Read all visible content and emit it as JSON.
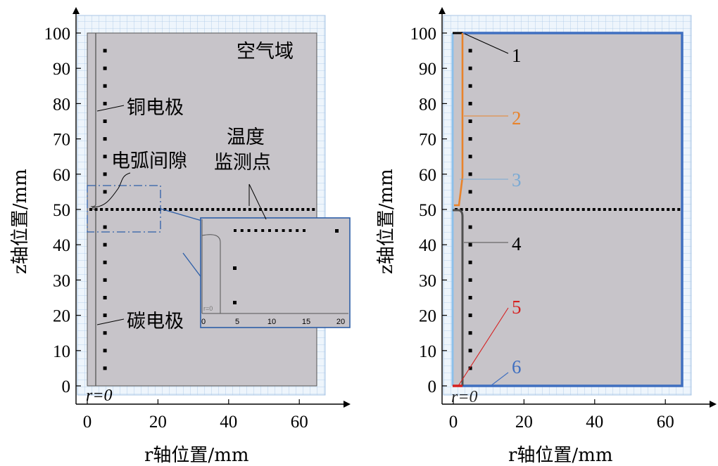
{
  "left_panel": {
    "x_axis_label": "r轴位置/mm",
    "y_axis_label": "z轴位置/mm",
    "x_ticks": [
      "0",
      "20",
      "40",
      "60"
    ],
    "y_ticks": [
      "0",
      "10",
      "20",
      "30",
      "40",
      "50",
      "60",
      "70",
      "80",
      "90",
      "100"
    ],
    "annotations": {
      "air_domain": "空气域",
      "copper_electrode": "铜电极",
      "arc_gap": "电弧间隙",
      "temp_monitor_line1": "温度",
      "temp_monitor_line2": "监测点",
      "carbon_electrode": "碳电极",
      "r_zero": "r=0"
    },
    "inset": {
      "x_ticks": [
        "0",
        "5",
        "10",
        "15",
        "20"
      ],
      "r_zero": "r=0"
    }
  },
  "right_panel": {
    "x_axis_label": "r轴位置/mm",
    "y_axis_label": "z轴位置/mm",
    "x_ticks": [
      "0",
      "20",
      "40",
      "60"
    ],
    "y_ticks": [
      "0",
      "10",
      "20",
      "30",
      "40",
      "50",
      "60",
      "70",
      "80",
      "90",
      "100"
    ],
    "boundary_labels": [
      "1",
      "2",
      "3",
      "4",
      "5",
      "6"
    ],
    "boundary_colors": [
      "#000000",
      "#e8832b",
      "#7aaad4",
      "#505050",
      "#d62020",
      "#3f6fc0"
    ],
    "r_zero": "r=0"
  }
}
